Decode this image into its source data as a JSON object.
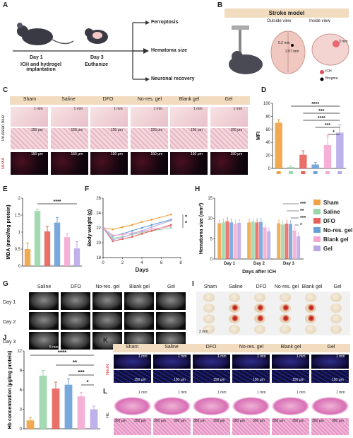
{
  "panels": {
    "A": {
      "label": "A",
      "day1": "Day 1",
      "day1_sub": "ICH and hydrogel implantation",
      "day3": "Day 3",
      "day3_sub": "Euthanize",
      "outcomes": [
        "Ferroptosis",
        "Hematoma size",
        "Neuronal recovery"
      ]
    },
    "B": {
      "label": "B",
      "title": "Stroke model",
      "outside": "Outside view",
      "inside": "Inside view",
      "dist1": "0.2 mm",
      "dist2": "2.97 mm",
      "dist3": "3 mm",
      "legend_ich": "ICH",
      "legend_bregma": "Bregma"
    },
    "C": {
      "label": "C",
      "groups": [
        "Sham",
        "Saline",
        "DFO",
        "No-res. gel",
        "Blank gel",
        "Gel"
      ],
      "row1": "Prussian blue",
      "row2": "GPX4",
      "scale_1mm": "1 mm",
      "scale_150um": "150 μm"
    },
    "G": {
      "label": "G",
      "groups": [
        "Saline",
        "DFO",
        "No-res. gel",
        "Blank gel",
        "Gel"
      ],
      "rows": [
        "Day 1",
        "Day 2",
        "Day 3"
      ],
      "scale": "5 mm"
    },
    "I": {
      "label": "I",
      "groups": [
        "Sham",
        "Saline",
        "DFO",
        "No-res. gel",
        "Blank gel",
        "Gel"
      ],
      "scale": "2 mm"
    },
    "K": {
      "label": "K",
      "groups": [
        "Sham",
        "Saline",
        "DFO",
        "No-res. gel",
        "Blank gel",
        "Gel"
      ],
      "row": "NeuN",
      "scale_1mm": "1 mm",
      "scale_150um": "150 μm"
    },
    "L": {
      "label": "L",
      "row": "HE",
      "scale_1mm": "1 mm",
      "scale_300um": "300 μm"
    }
  },
  "colors": {
    "sham": "#f0a040",
    "saline": "#9ad6a8",
    "dfo": "#e8605a",
    "nores": "#6aa0d8",
    "blank": "#f4a8d0",
    "gel": "#b8a8e8"
  },
  "chart_data": [
    {
      "id": "D",
      "type": "bar",
      "label": "D",
      "ylabel": "MFI",
      "ylim": [
        0,
        100
      ],
      "yticks": [
        0,
        20,
        40,
        60,
        80,
        100
      ],
      "categories": [
        "Sham",
        "Saline",
        "DFO",
        "No-res. gel",
        "Blank gel",
        "Gel"
      ],
      "values": [
        70,
        2,
        21,
        6,
        36,
        55
      ],
      "errors": [
        5,
        2,
        6,
        3,
        14,
        12
      ],
      "sig": [
        "****",
        "***",
        "****",
        "***",
        "*"
      ]
    },
    {
      "id": "E",
      "type": "bar",
      "label": "E",
      "ylabel": "MDA (nmol/mg protein)",
      "ylim": [
        0,
        2.0
      ],
      "yticks": [
        0.0,
        0.5,
        1.0,
        1.5,
        2.0
      ],
      "categories": [
        "Sham",
        "Saline",
        "DFO",
        "No-res. gel",
        "Blank gel",
        "Gel"
      ],
      "values": [
        0.5,
        1.62,
        1.02,
        1.28,
        0.85,
        0.52
      ],
      "errors": [
        0.18,
        0.06,
        0.15,
        0.15,
        0.1,
        0.2
      ],
      "sig": [
        "****"
      ]
    },
    {
      "id": "F",
      "type": "line",
      "label": "F",
      "xlabel": "Days",
      "ylabel": "Body weight (g)",
      "xlim": [
        0,
        8
      ],
      "ylim": [
        18,
        26
      ],
      "xticks": [
        0,
        2,
        4,
        6,
        8
      ],
      "yticks": [
        18,
        20,
        22,
        24,
        26
      ],
      "x": [
        0,
        1,
        2,
        3,
        4,
        5,
        7
      ],
      "series": [
        {
          "name": "Sham",
          "values": [
            22,
            21.8,
            22.1,
            22.4,
            22.8,
            23.1,
            23.8
          ]
        },
        {
          "name": "Saline",
          "values": [
            22,
            20.6,
            20.8,
            21.1,
            21.4,
            21.6,
            22.0
          ]
        },
        {
          "name": "DFO",
          "values": [
            22,
            20.2,
            20.5,
            20.8,
            21.2,
            21.6,
            22.4
          ]
        },
        {
          "name": "No-res. gel",
          "values": [
            22,
            20.9,
            21.2,
            21.6,
            22.0,
            22.4,
            23.1
          ]
        },
        {
          "name": "Blank gel",
          "values": [
            22,
            21.0,
            21.1,
            21.3,
            21.5,
            21.8,
            22.2
          ]
        },
        {
          "name": "Gel",
          "values": [
            22,
            20.4,
            20.7,
            21.2,
            21.6,
            22.1,
            23.0
          ]
        }
      ],
      "sig": [
        "*",
        "*"
      ]
    },
    {
      "id": "H",
      "type": "bar",
      "label": "H",
      "xlabel": "Days after ICH",
      "ylabel": "Hematoma size (mm²)",
      "ylim": [
        0,
        15
      ],
      "yticks": [
        0,
        5,
        10,
        15
      ],
      "categories": [
        "Day 1",
        "Day 2",
        "Day 3"
      ],
      "series": [
        {
          "name": "Sham",
          "values": [
            8.8,
            9.0,
            8.8
          ]
        },
        {
          "name": "Saline",
          "values": [
            9.0,
            9.2,
            8.5
          ]
        },
        {
          "name": "DFO",
          "values": [
            9.3,
            9.0,
            8.7
          ]
        },
        {
          "name": "No-res. gel",
          "values": [
            9.0,
            9.1,
            8.6
          ]
        },
        {
          "name": "Blank gel",
          "values": [
            8.7,
            7.8,
            7.0
          ]
        },
        {
          "name": "Gel",
          "values": [
            8.9,
            6.8,
            5.6
          ]
        }
      ],
      "sig": [
        "***",
        "**",
        "***",
        "*"
      ]
    },
    {
      "id": "J",
      "type": "bar",
      "label": "J",
      "ylabel": "Hb concentration (µg/mg protein)",
      "ylim": [
        0,
        12
      ],
      "yticks": [
        0,
        3,
        6,
        9,
        12
      ],
      "categories": [
        "Sham",
        "Saline",
        "DFO",
        "No-res. gel",
        "Blank gel",
        "Gel"
      ],
      "values": [
        1.3,
        8.2,
        6.2,
        6.8,
        5.0,
        3.0
      ],
      "errors": [
        0.5,
        0.8,
        1.0,
        0.9,
        0.6,
        0.5
      ],
      "sig": [
        "****",
        "**",
        "***",
        "*"
      ]
    }
  ]
}
